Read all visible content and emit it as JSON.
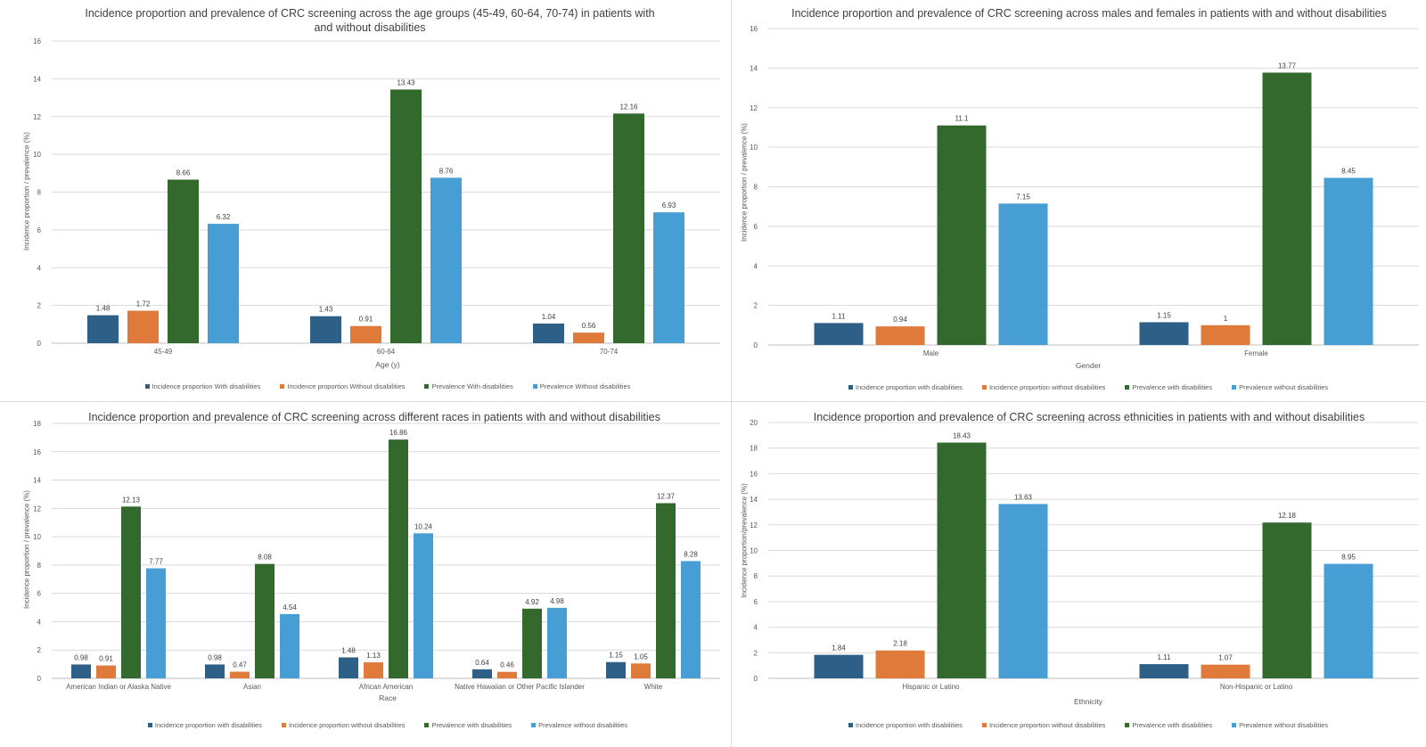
{
  "colors": {
    "inc_with": "#2e5f86",
    "inc_without": "#e07a3a",
    "prev_with": "#33692c",
    "prev_without": "#479ed5",
    "grid": "#d9d9d9",
    "axis": "#bfbfbf",
    "text": "#595959"
  },
  "chart_data": [
    {
      "type": "bar",
      "title": "Incidence proportion and prevalence of CRC screening across the age groups (45-49, 60-64, 70-74) in patients with and without disabilities",
      "xlabel": "Age (y)",
      "ylabel": "Incidence proportion / prevalence (%)",
      "categories": [
        "45-49",
        "60-64",
        "70-74"
      ],
      "ylim": [
        0,
        16
      ],
      "yticks": [
        "0",
        "2",
        "4",
        "6",
        "8",
        "10",
        "12",
        "14",
        "16"
      ],
      "grid": true,
      "legend_position": "bottom",
      "series": [
        {
          "name": "Incidence proportion With disabilities",
          "color": "inc_with",
          "values": [
            1.48,
            1.43,
            1.04
          ],
          "labels": [
            "1.48",
            "1.43",
            "1.04"
          ]
        },
        {
          "name": "Incidence proportion Without disabilities",
          "color": "inc_without",
          "values": [
            1.72,
            0.91,
            0.56
          ],
          "labels": [
            "1.72",
            "0.91",
            "0.56"
          ]
        },
        {
          "name": "Prevalence With disabilities",
          "color": "prev_with",
          "values": [
            8.66,
            13.43,
            12.16
          ],
          "labels": [
            "8.66",
            "13.43",
            "12.16"
          ]
        },
        {
          "name": "Prevalence Without disabilities",
          "color": "prev_without",
          "values": [
            6.32,
            8.76,
            6.93
          ],
          "labels": [
            "6.32",
            "8.76",
            "6.93"
          ]
        }
      ]
    },
    {
      "type": "bar",
      "title": "Incidence proportion and prevalence of CRC screening across males and females in patients with and without disabilities",
      "xlabel": "Gender",
      "ylabel": "Incidence proportion / prevalence (%)",
      "categories": [
        "Male",
        "Female"
      ],
      "ylim": [
        0,
        16
      ],
      "yticks": [
        "0",
        "2",
        "4",
        "6",
        "8",
        "10",
        "12",
        "14",
        "16"
      ],
      "grid": true,
      "legend_position": "bottom",
      "series": [
        {
          "name": "Incidence proportion with disabilities",
          "color": "inc_with",
          "values": [
            1.11,
            1.15
          ],
          "labels": [
            "1.11",
            "1.15"
          ]
        },
        {
          "name": "Incidence proportion without disabilities",
          "color": "inc_without",
          "values": [
            0.94,
            1
          ],
          "labels": [
            "0.94",
            "1"
          ]
        },
        {
          "name": "Prevalence with disabilities",
          "color": "prev_with",
          "values": [
            11.1,
            13.77
          ],
          "labels": [
            "11.1",
            "13.77"
          ]
        },
        {
          "name": "Prevalence without disabilities",
          "color": "prev_without",
          "values": [
            7.15,
            8.45
          ],
          "labels": [
            "7.15",
            "8.45"
          ]
        }
      ]
    },
    {
      "type": "bar",
      "title": "Incidence proportion and prevalence of CRC screening across different races in patients with and without disabilities",
      "xlabel": "Race",
      "ylabel": "Incidence proportion / prevalence (%)",
      "categories": [
        "American Indian or Alaska Native",
        "Asian",
        "African American",
        "Native Hawaiian or Other Pacific Islander",
        "White"
      ],
      "ylim": [
        0,
        18
      ],
      "yticks": [
        "0",
        "2",
        "4",
        "6",
        "8",
        "10",
        "12",
        "14",
        "16",
        "18"
      ],
      "grid": true,
      "legend_position": "bottom",
      "series": [
        {
          "name": "Incidence proportion with disabilities",
          "color": "inc_with",
          "values": [
            0.98,
            0.98,
            1.48,
            0.64,
            1.15
          ],
          "labels": [
            "0.98",
            "0.98",
            "1.48",
            "0.64",
            "1.15"
          ]
        },
        {
          "name": "Incidence proportion without disabilities",
          "color": "inc_without",
          "values": [
            0.91,
            0.47,
            1.13,
            0.46,
            1.05
          ],
          "labels": [
            "0.91",
            "0.47",
            "1.13",
            "0.46",
            "1.05"
          ]
        },
        {
          "name": "Prevalence with disabilities",
          "color": "prev_with",
          "values": [
            12.13,
            8.08,
            16.86,
            4.92,
            12.37
          ],
          "labels": [
            "12.13",
            "8.08",
            "16.86",
            "4.92",
            "12.37"
          ]
        },
        {
          "name": "Prevalence without disabilities",
          "color": "prev_without",
          "values": [
            7.77,
            4.54,
            10.24,
            4.98,
            8.28
          ],
          "labels": [
            "7.77",
            "4.54",
            "10.24",
            "4.98",
            "8.28"
          ]
        }
      ]
    },
    {
      "type": "bar",
      "title": "Incidence proportion and prevalence of CRC screening  across ethnicities in patients with and without disabilities",
      "xlabel": "Ethnicity",
      "ylabel": "Incidence proportion/prevalence (%)",
      "categories": [
        "Hispanic or Latino",
        "Non-Hispanic or Latino"
      ],
      "ylim": [
        0,
        20
      ],
      "yticks": [
        "0",
        "2",
        "4",
        "6",
        "8",
        "10",
        "12",
        "14",
        "16",
        "18",
        "20"
      ],
      "grid": true,
      "legend_position": "bottom",
      "series": [
        {
          "name": "Incidence proportion with disabilities",
          "color": "inc_with",
          "values": [
            1.84,
            1.11
          ],
          "labels": [
            "1.84",
            "1.11"
          ]
        },
        {
          "name": "Incidence proportion without disabilities",
          "color": "inc_without",
          "values": [
            2.18,
            1.07
          ],
          "labels": [
            "2.18",
            "1.07"
          ]
        },
        {
          "name": "Prevalence with disabilities",
          "color": "prev_with",
          "values": [
            18.43,
            12.18
          ],
          "labels": [
            "18.43",
            "12.18"
          ]
        },
        {
          "name": "Prevalence without disabilities",
          "color": "prev_without",
          "values": [
            13.63,
            8.95
          ],
          "labels": [
            "13.63",
            "8.95"
          ]
        }
      ]
    }
  ]
}
